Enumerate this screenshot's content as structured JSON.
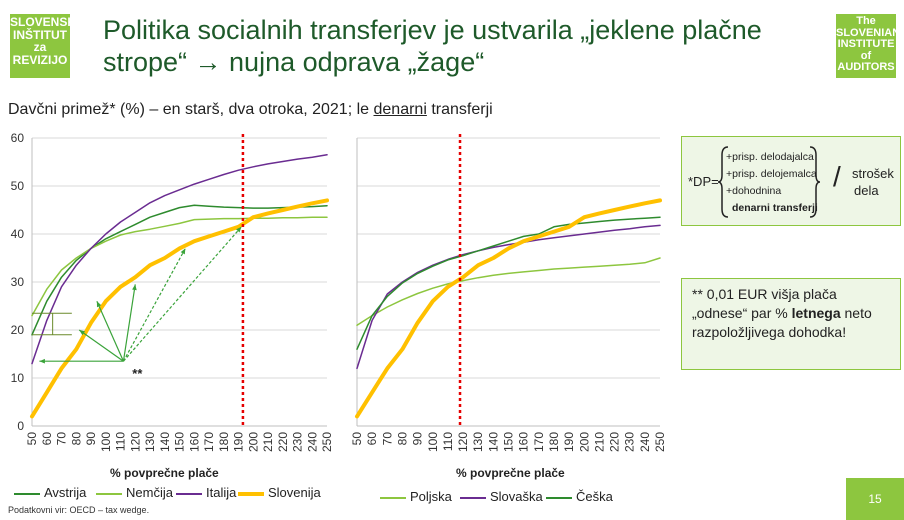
{
  "logos": {
    "left": [
      "SLOVENSKI",
      "INŠTITUT",
      "za REVIZIJO"
    ],
    "right": [
      "The SLOVENIAN",
      "INSTITUTE",
      "of AUDITORS"
    ]
  },
  "title": "Politika socialnih transferjev je ustvarila „jeklene plačne strope“ → nujna odprava „žage“",
  "subtitle": {
    "pre": "Davčni primež* (%) – en starš, dva otroka, 2021; le ",
    "underlined": "denarni",
    "post": " transferji"
  },
  "dp_box": {
    "lhs": "*DP=",
    "terms": [
      "+prisp. delodajalca",
      "+prisp. delojemalca",
      "+dohodnina",
      "denarni transferji"
    ],
    "divider": "/",
    "rhs": [
      "strošek",
      "dela"
    ]
  },
  "note": {
    "pre": "** 0,01 EUR višja plača „odnese“  par % ",
    "bold": "letnega",
    "post": " neto razpoložljivega dohodka!"
  },
  "source": "Podatkovni vir: OECD – tax wedge.",
  "page_number": "15",
  "colors": {
    "green_dark": "#2e8b2e",
    "green_light": "#8dc63f",
    "purple": "#6a2c91",
    "slovenia": "#ffc000",
    "marker": "#e60000",
    "arrow": "#3aa33a"
  },
  "chart_data": [
    {
      "type": "line",
      "title": "",
      "xlabel": "% povprečne plače",
      "ylabel": "",
      "ylim": [
        0,
        60
      ],
      "yticks": [
        0,
        10,
        20,
        30,
        40,
        50,
        60
      ],
      "x": [
        50,
        60,
        70,
        80,
        90,
        100,
        110,
        120,
        130,
        140,
        150,
        160,
        170,
        180,
        190,
        200,
        210,
        220,
        230,
        240,
        250
      ],
      "vline_x": 193,
      "annotation": "**",
      "series": [
        {
          "name": "Avstrija",
          "color": "#2e8b2e",
          "width": 1.5,
          "values": [
            19,
            26,
            31,
            34.5,
            37,
            39,
            40.5,
            42,
            43.5,
            44.5,
            45.5,
            46,
            45.8,
            45.6,
            45.5,
            45.4,
            45.4,
            45.5,
            45.6,
            45.7,
            45.9
          ]
        },
        {
          "name": "Nemčija",
          "color": "#8dc63f",
          "width": 1.5,
          "values": [
            23,
            28.5,
            32.5,
            35,
            37,
            38.5,
            39.8,
            40.5,
            41,
            41.6,
            42.2,
            43,
            43.1,
            43.2,
            43.2,
            43.3,
            43.3,
            43.4,
            43.4,
            43.5,
            43.5
          ]
        },
        {
          "name": "Italija",
          "color": "#6a2c91",
          "width": 1.5,
          "values": [
            13,
            22,
            29,
            33.5,
            37,
            40,
            42.5,
            44.5,
            46.5,
            48,
            49.2,
            50.4,
            51.4,
            52.4,
            53.3,
            54,
            54.6,
            55.1,
            55.6,
            56,
            56.5
          ]
        },
        {
          "name": "Slovenija",
          "color": "#ffc000",
          "width": 4,
          "values": [
            2,
            7,
            12,
            16,
            21.5,
            26,
            29,
            31,
            33.5,
            35,
            37,
            38.5,
            39.5,
            40.5,
            41.5,
            43.5,
            44.3,
            45,
            45.7,
            46.4,
            47
          ]
        }
      ]
    },
    {
      "type": "line",
      "title": "",
      "xlabel": "% povprečne plače",
      "ylabel": "",
      "ylim": [
        0,
        60
      ],
      "x": [
        50,
        60,
        70,
        80,
        90,
        100,
        110,
        120,
        130,
        140,
        150,
        160,
        170,
        180,
        190,
        200,
        210,
        220,
        230,
        240,
        250
      ],
      "vline_x": 118,
      "series": [
        {
          "name": "Poljska",
          "color": "#8dc63f",
          "width": 1.5,
          "values": [
            21,
            23,
            24.8,
            26.3,
            27.6,
            28.7,
            29.6,
            30.3,
            30.9,
            31.4,
            31.8,
            32.1,
            32.4,
            32.7,
            32.9,
            33.1,
            33.3,
            33.5,
            33.7,
            34,
            35
          ]
        },
        {
          "name": "Slovaška",
          "color": "#6a2c91",
          "width": 1.5,
          "values": [
            12,
            22,
            27.5,
            30,
            32,
            33.5,
            34.7,
            35.7,
            36.5,
            37.2,
            37.8,
            38.3,
            38.8,
            39.2,
            39.6,
            40,
            40.4,
            40.8,
            41.1,
            41.5,
            41.8
          ]
        },
        {
          "name": "Češka",
          "color": "#2e8b2e",
          "width": 1.5,
          "values": [
            16,
            23,
            27,
            29.8,
            31.8,
            33.3,
            34.6,
            35.5,
            36.5,
            37.5,
            38.5,
            39.5,
            40,
            41.5,
            42,
            42.3,
            42.6,
            42.9,
            43.1,
            43.3,
            43.5
          ]
        },
        {
          "name": "Slovenija",
          "color": "#ffc000",
          "width": 4,
          "values": [
            2,
            7,
            12,
            16,
            21.5,
            26,
            29,
            31,
            33.5,
            35,
            37,
            38.5,
            39.5,
            40.5,
            41.5,
            43.5,
            44.3,
            45,
            45.7,
            46.4,
            47
          ]
        }
      ]
    }
  ]
}
